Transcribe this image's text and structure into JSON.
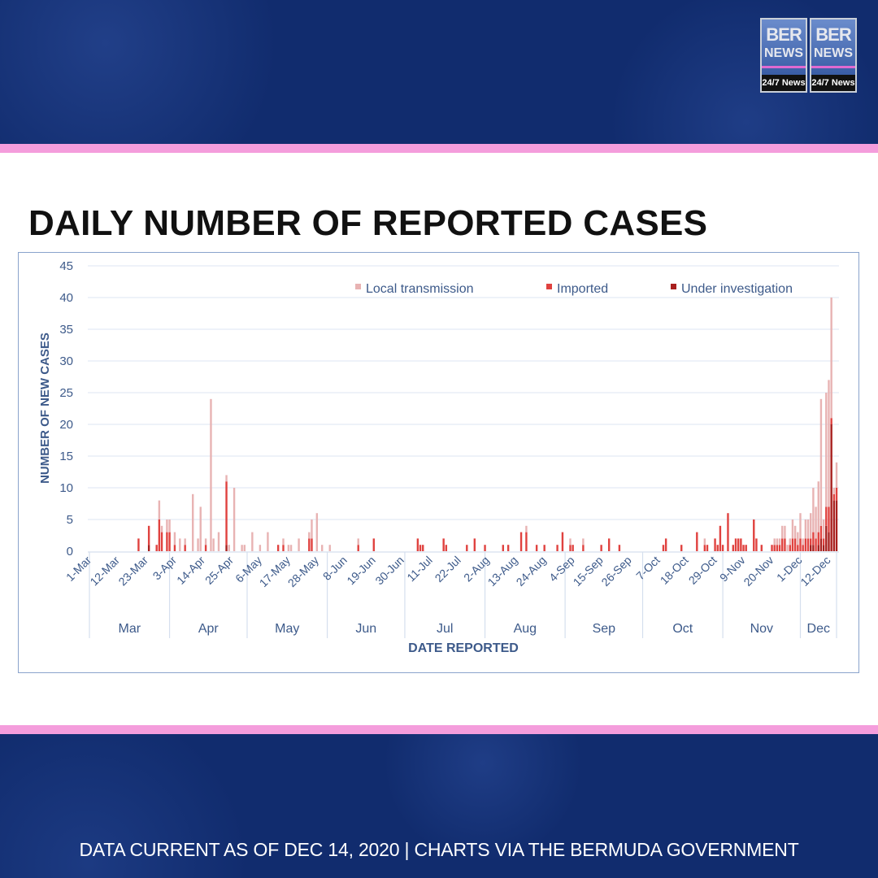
{
  "logo": {
    "line1": "BER",
    "line2": "NEWS",
    "tagline": "24/7 News"
  },
  "title": "DAILY NUMBER OF REPORTED CASES",
  "footer": "DATA CURRENT AS OF DEC 14, 2020 | CHARTS VIA THE BERMUDA GOVERNMENT",
  "chart_data": {
    "type": "bar",
    "stacked": true,
    "title": "DAILY NUMBER OF REPORTED CASES",
    "xlabel": "DATE REPORTED",
    "ylabel": "NUMBER OF NEW CASES",
    "ylim": [
      0,
      45
    ],
    "yticks": [
      0,
      5,
      10,
      15,
      20,
      25,
      30,
      35,
      40,
      45
    ],
    "grid": true,
    "legend_position": "top-right",
    "xlim": [
      "1-Mar",
      "14-Dec"
    ],
    "xtick_labels": [
      "1-Mar",
      "12-Mar",
      "23-Mar",
      "3-Apr",
      "14-Apr",
      "25-Apr",
      "6-May",
      "17-May",
      "28-May",
      "8-Jun",
      "19-Jun",
      "30-Jun",
      "11-Jul",
      "22-Jul",
      "2-Aug",
      "13-Aug",
      "24-Aug",
      "4-Sep",
      "15-Sep",
      "26-Sep",
      "7-Oct",
      "18-Oct",
      "29-Oct",
      "9-Nov",
      "20-Nov",
      "1-Dec",
      "12-Dec"
    ],
    "month_labels": [
      "Mar",
      "Apr",
      "May",
      "Jun",
      "Jul",
      "Aug",
      "Sep",
      "Oct",
      "Nov",
      "Dec"
    ],
    "series": [
      {
        "name": "Local transmission",
        "color": "#e8b3b3"
      },
      {
        "name": "Imported",
        "color": "#e0423f"
      },
      {
        "name": "Under investigation",
        "color": "#a8201e"
      }
    ],
    "points_columns": [
      "date",
      "Local transmission",
      "Imported",
      "Under investigation"
    ],
    "points": [
      [
        "20-Mar",
        0,
        2,
        0
      ],
      [
        "24-Mar",
        0,
        3,
        1
      ],
      [
        "27-Mar",
        0,
        1,
        0
      ],
      [
        "28-Mar",
        3,
        5,
        0
      ],
      [
        "29-Mar",
        1,
        3,
        0
      ],
      [
        "31-Mar",
        2,
        3,
        0
      ],
      [
        "1-Apr",
        2,
        3,
        0
      ],
      [
        "3-Apr",
        2,
        1,
        0
      ],
      [
        "5-Apr",
        2,
        0,
        0
      ],
      [
        "7-Apr",
        1,
        1,
        0
      ],
      [
        "10-Apr",
        9,
        0,
        0
      ],
      [
        "12-Apr",
        2,
        0,
        0
      ],
      [
        "13-Apr",
        7,
        0,
        0
      ],
      [
        "15-Apr",
        1,
        1,
        0
      ],
      [
        "17-Apr",
        24,
        0,
        0
      ],
      [
        "18-Apr",
        2,
        0,
        0
      ],
      [
        "20-Apr",
        3,
        0,
        0
      ],
      [
        "23-Apr",
        1,
        10,
        1
      ],
      [
        "24-Apr",
        1,
        0,
        0
      ],
      [
        "26-Apr",
        10,
        0,
        0
      ],
      [
        "29-Apr",
        1,
        0,
        0
      ],
      [
        "30-Apr",
        1,
        0,
        0
      ],
      [
        "3-May",
        3,
        0,
        0
      ],
      [
        "6-May",
        1,
        0,
        0
      ],
      [
        "9-May",
        3,
        0,
        0
      ],
      [
        "13-May",
        0,
        1,
        0
      ],
      [
        "15-May",
        1,
        1,
        0
      ],
      [
        "17-May",
        1,
        0,
        0
      ],
      [
        "18-May",
        1,
        0,
        0
      ],
      [
        "21-May",
        2,
        0,
        0
      ],
      [
        "25-May",
        1,
        2,
        0
      ],
      [
        "26-May",
        3,
        2,
        0
      ],
      [
        "28-May",
        6,
        0,
        0
      ],
      [
        "30-May",
        1,
        0,
        0
      ],
      [
        "2-Jun",
        1,
        0,
        0
      ],
      [
        "13-Jun",
        1,
        1,
        0
      ],
      [
        "19-Jun",
        0,
        2,
        0
      ],
      [
        "6-Jul",
        0,
        2,
        0
      ],
      [
        "7-Jul",
        0,
        1,
        0
      ],
      [
        "8-Jul",
        0,
        1,
        0
      ],
      [
        "16-Jul",
        0,
        2,
        0
      ],
      [
        "17-Jul",
        0,
        1,
        0
      ],
      [
        "25-Jul",
        0,
        1,
        0
      ],
      [
        "28-Jul",
        0,
        2,
        0
      ],
      [
        "1-Aug",
        0,
        1,
        0
      ],
      [
        "8-Aug",
        0,
        1,
        0
      ],
      [
        "10-Aug",
        0,
        1,
        0
      ],
      [
        "15-Aug",
        0,
        3,
        0
      ],
      [
        "17-Aug",
        1,
        3,
        0
      ],
      [
        "21-Aug",
        0,
        1,
        0
      ],
      [
        "24-Aug",
        0,
        1,
        0
      ],
      [
        "29-Aug",
        0,
        1,
        0
      ],
      [
        "31-Aug",
        0,
        3,
        0
      ],
      [
        "3-Sep",
        1,
        1,
        0
      ],
      [
        "4-Sep",
        0,
        1,
        0
      ],
      [
        "8-Sep",
        1,
        1,
        0
      ],
      [
        "15-Sep",
        0,
        1,
        0
      ],
      [
        "18-Sep",
        0,
        2,
        0
      ],
      [
        "22-Sep",
        0,
        1,
        0
      ],
      [
        "9-Oct",
        0,
        1,
        0
      ],
      [
        "10-Oct",
        0,
        2,
        0
      ],
      [
        "16-Oct",
        0,
        1,
        0
      ],
      [
        "22-Oct",
        0,
        3,
        0
      ],
      [
        "25-Oct",
        1,
        1,
        0
      ],
      [
        "26-Oct",
        0,
        1,
        0
      ],
      [
        "29-Oct",
        0,
        2,
        0
      ],
      [
        "30-Oct",
        0,
        1,
        0
      ],
      [
        "31-Oct",
        0,
        4,
        0
      ],
      [
        "1-Nov",
        0,
        1,
        0
      ],
      [
        "3-Nov",
        0,
        6,
        0
      ],
      [
        "5-Nov",
        0,
        1,
        0
      ],
      [
        "6-Nov",
        0,
        2,
        0
      ],
      [
        "7-Nov",
        0,
        2,
        0
      ],
      [
        "8-Nov",
        0,
        2,
        0
      ],
      [
        "9-Nov",
        0,
        1,
        0
      ],
      [
        "10-Nov",
        0,
        1,
        0
      ],
      [
        "13-Nov",
        0,
        5,
        0
      ],
      [
        "14-Nov",
        0,
        2,
        0
      ],
      [
        "16-Nov",
        0,
        1,
        0
      ],
      [
        "20-Nov",
        0,
        1,
        0
      ],
      [
        "21-Nov",
        1,
        1,
        0
      ],
      [
        "22-Nov",
        1,
        1,
        0
      ],
      [
        "23-Nov",
        1,
        1,
        0
      ],
      [
        "24-Nov",
        2,
        2,
        0
      ],
      [
        "25-Nov",
        2,
        2,
        0
      ],
      [
        "26-Nov",
        1,
        0,
        0
      ],
      [
        "27-Nov",
        1,
        1,
        0
      ],
      [
        "28-Nov",
        3,
        2,
        0
      ],
      [
        "29-Nov",
        2,
        2,
        0
      ],
      [
        "30-Nov",
        2,
        1,
        0
      ],
      [
        "1-Dec",
        4,
        2,
        0
      ],
      [
        "2-Dec",
        1,
        1,
        0
      ],
      [
        "3-Dec",
        3,
        2,
        0
      ],
      [
        "4-Dec",
        3,
        2,
        0
      ],
      [
        "5-Dec",
        4,
        1,
        1
      ],
      [
        "6-Dec",
        7,
        2,
        1
      ],
      [
        "7-Dec",
        5,
        2,
        0
      ],
      [
        "8-Dec",
        8,
        2,
        1
      ],
      [
        "9-Dec",
        20,
        2,
        2
      ],
      [
        "10-Dec",
        3,
        1,
        1
      ],
      [
        "11-Dec",
        18,
        3,
        4
      ],
      [
        "12-Dec",
        20,
        4,
        3
      ],
      [
        "13-Dec",
        19,
        1,
        20
      ],
      [
        "14-Dec",
        1,
        1,
        8
      ],
      [
        "15-Dec",
        4,
        2,
        8
      ]
    ]
  }
}
